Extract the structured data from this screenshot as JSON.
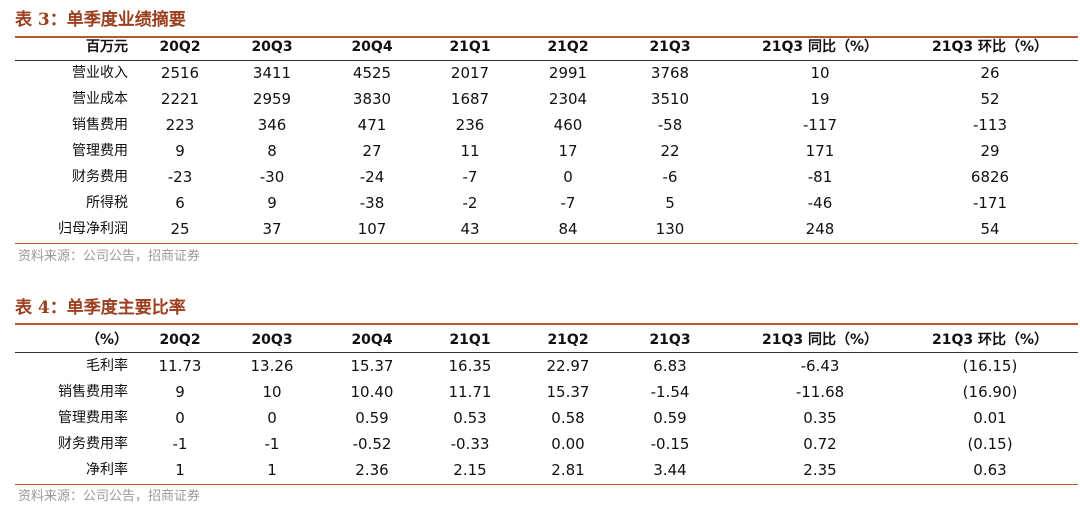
{
  "tables": [
    {
      "title": "表 3：单季度业绩摘要",
      "header": [
        "百万元",
        "20Q2",
        "20Q3",
        "20Q4",
        "21Q1",
        "21Q2",
        "21Q3",
        "21Q3 同比（%）",
        "21Q3 环比（%）"
      ],
      "rows": [
        [
          "营业收入",
          "2516",
          "3411",
          "4525",
          "2017",
          "2991",
          "3768",
          "10",
          "26"
        ],
        [
          "营业成本",
          "2221",
          "2959",
          "3830",
          "1687",
          "2304",
          "3510",
          "19",
          "52"
        ],
        [
          "销售费用",
          "223",
          "346",
          "471",
          "236",
          "460",
          "-58",
          "-117",
          "-113"
        ],
        [
          "管理费用",
          "9",
          "8",
          "27",
          "11",
          "17",
          "22",
          "171",
          "29"
        ],
        [
          "财务费用",
          "-23",
          "-30",
          "-24",
          "-7",
          "0",
          "-6",
          "-81",
          "6826"
        ],
        [
          "所得税",
          "6",
          "9",
          "-38",
          "-2",
          "-7",
          "5",
          "-46",
          "-171"
        ],
        [
          "归母净利润",
          "25",
          "37",
          "107",
          "43",
          "84",
          "130",
          "248",
          "54"
        ]
      ],
      "source": "资料来源：公司公告，招商证券"
    },
    {
      "title": "表 4：单季度主要比率",
      "header": [
        "（%）",
        "20Q2",
        "20Q3",
        "20Q4",
        "21Q1",
        "21Q2",
        "21Q3",
        "21Q3 同比（%）",
        "21Q3 环比（%）"
      ],
      "rows": [
        [
          "毛利率",
          "11.73",
          "13.26",
          "15.37",
          "16.35",
          "22.97",
          "6.83",
          "-6.43",
          "(16.15)"
        ],
        [
          "销售费用率",
          "9",
          "10",
          "10.40",
          "11.71",
          "15.37",
          "-1.54",
          "-11.68",
          "(16.90)"
        ],
        [
          "管理费用率",
          "0",
          "0",
          "0.59",
          "0.53",
          "0.58",
          "0.59",
          "0.35",
          "0.01"
        ],
        [
          "财务费用率",
          "-1",
          "-1",
          "-0.52",
          "-0.33",
          "0.00",
          "-0.15",
          "0.72",
          "(0.15)"
        ],
        [
          "净利率",
          "1",
          "1",
          "2.36",
          "2.15",
          "2.81",
          "3.44",
          "2.35",
          "0.63"
        ]
      ],
      "source": "资料来源：公司公告，招商证券"
    }
  ]
}
